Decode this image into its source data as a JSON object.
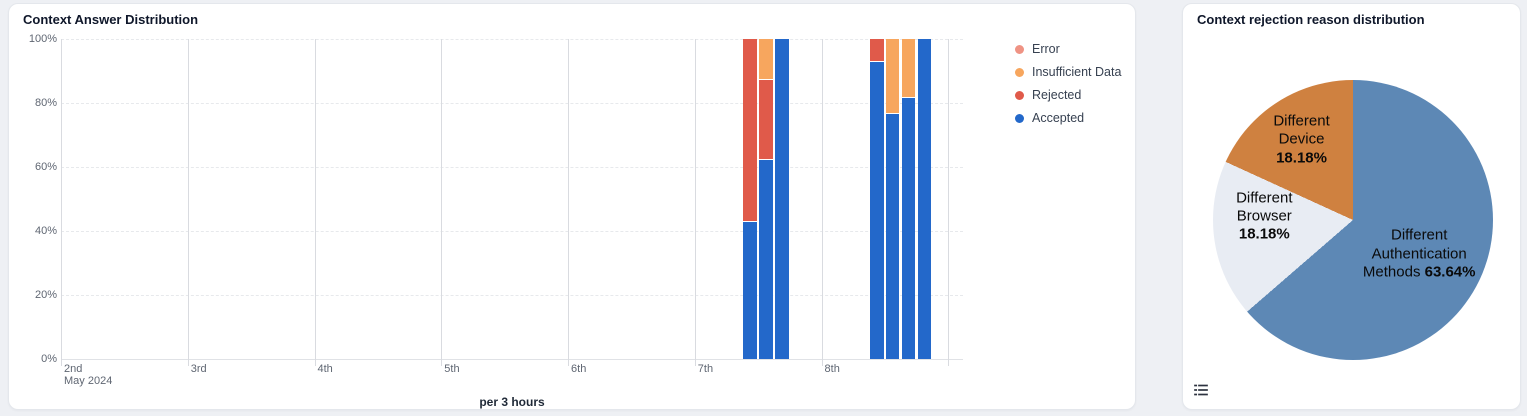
{
  "page": {
    "background": "#eef0f4"
  },
  "left_card": {
    "title": "Context Answer Distribution",
    "x_axis_title": "per 3 hours",
    "legend": [
      {
        "label": "Error",
        "color": "#ef9384"
      },
      {
        "label": "Insufficient Data",
        "color": "#f7a65e"
      },
      {
        "label": "Rejected",
        "color": "#e05a4a"
      },
      {
        "label": "Accepted",
        "color": "#2368ca"
      }
    ]
  },
  "right_card": {
    "title": "Context rejection reason distribution",
    "legend_toggle_icon": "list-icon"
  },
  "chart_data": [
    {
      "type": "bar",
      "subtype": "stacked-100-percent",
      "title": "Context Answer Distribution",
      "xlabel": "per 3 hours",
      "x_axis": {
        "month_label": "May 2024",
        "day_ticks": [
          "2nd",
          "3rd",
          "4th",
          "5th",
          "6th",
          "7th",
          "8th"
        ],
        "extra_unlabeled_tick": true,
        "bucket_hours": 3
      },
      "y_axis": {
        "ticks_pct": [
          0,
          20,
          40,
          60,
          80,
          100
        ],
        "tick_suffix": "%",
        "range": [
          0,
          100
        ],
        "grid": "dashed"
      },
      "series_order_bottom_to_top": [
        "Accepted",
        "Rejected",
        "Insufficient Data",
        "Error"
      ],
      "colors": {
        "Accepted": "#2368ca",
        "Rejected": "#e05a4a",
        "Insufficient Data": "#f7a65e",
        "Error": "#ef9384"
      },
      "bars": [
        {
          "day_tick": "7th",
          "hour": 9,
          "Accepted": 43,
          "Rejected": 57,
          "Insufficient Data": 0,
          "Error": 0
        },
        {
          "day_tick": "7th",
          "hour": 12,
          "Accepted": 62.5,
          "Rejected": 25,
          "Insufficient Data": 12.5,
          "Error": 0
        },
        {
          "day_tick": "7th",
          "hour": 15,
          "Accepted": 100,
          "Rejected": 0,
          "Insufficient Data": 0,
          "Error": 0
        },
        {
          "day_tick": "8th",
          "hour": 9,
          "Accepted": 93,
          "Rejected": 7,
          "Insufficient Data": 0,
          "Error": 0
        },
        {
          "day_tick": "8th",
          "hour": 12,
          "Accepted": 77,
          "Rejected": 0,
          "Insufficient Data": 23,
          "Error": 0
        },
        {
          "day_tick": "8th",
          "hour": 15,
          "Accepted": 82,
          "Rejected": 0,
          "Insufficient Data": 18,
          "Error": 0
        },
        {
          "day_tick": "8th",
          "hour": 18,
          "Accepted": 100,
          "Rejected": 0,
          "Insufficient Data": 0,
          "Error": 0
        }
      ]
    },
    {
      "type": "pie",
      "title": "Context rejection reason distribution",
      "start_angle_deg": 0,
      "direction": "clockwise",
      "slices": [
        {
          "label": "Different Authentication Methods",
          "value": 63.64,
          "pct_label": "63.64%",
          "color": "#5d88b5",
          "label_lines": [
            "Different",
            "Authentication",
            "Methods"
          ],
          "pct_inline": true
        },
        {
          "label": "Different Browser",
          "value": 18.18,
          "pct_label": "18.18%",
          "color": "#e8ecf3",
          "label_lines": [
            "Different",
            "Browser"
          ],
          "pct_inline": false
        },
        {
          "label": "Different Device",
          "value": 18.18,
          "pct_label": "18.18%",
          "color": "#cf8140",
          "label_lines": [
            "Different",
            "Device"
          ],
          "pct_inline": false
        }
      ]
    }
  ]
}
